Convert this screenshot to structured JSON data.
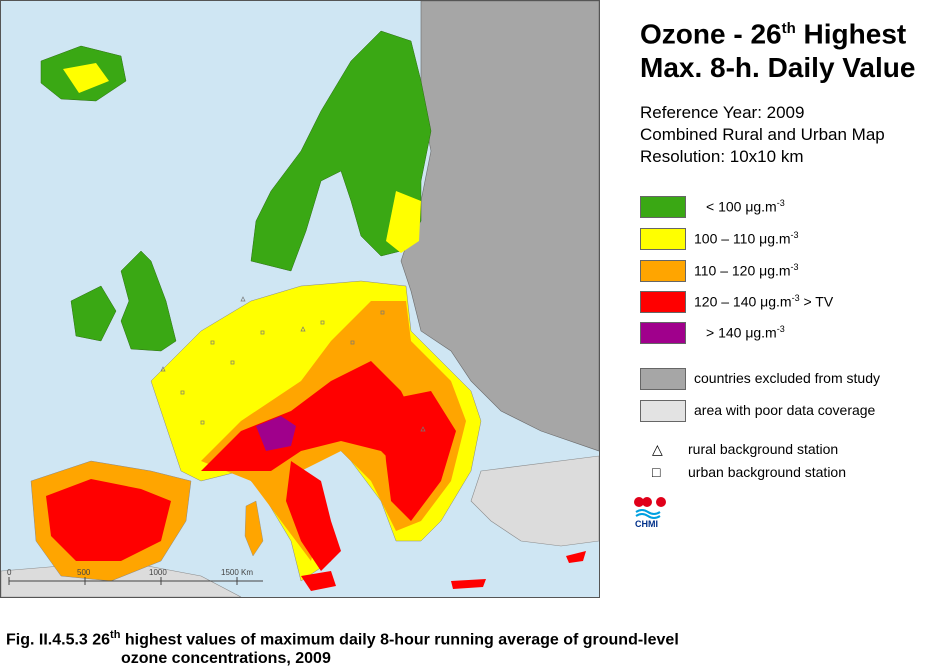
{
  "title": {
    "line1_prefix": "Ozone - 26",
    "line1_sup": "th",
    "line1_suffix": " Highest",
    "line2": "Max. 8-h. Daily Value"
  },
  "info": {
    "reference_year": "Reference Year: 2009",
    "map_type": "Combined Rural and Urban Map",
    "resolution": "Resolution: 10x10 km"
  },
  "legend": [
    {
      "text": "<  100  μg.m",
      "sup": "-3",
      "suffix": "",
      "color": "#3aa814"
    },
    {
      "text": "100 – 110  μg.m",
      "sup": "-3",
      "suffix": "",
      "color": "#ffff00"
    },
    {
      "text": "110 – 120  μg.m",
      "sup": "-3",
      "suffix": "",
      "color": "#ffa500"
    },
    {
      "text": "120 – 140  μg.m",
      "sup": "-3",
      "suffix": "  > TV",
      "color": "#ff0000"
    },
    {
      "text": ">  140  μg.m",
      "sup": "-3",
      "suffix": "",
      "color": "#a0008c"
    }
  ],
  "legend_extra": [
    {
      "text": "countries excluded from study",
      "color": "#a6a6a6"
    },
    {
      "text": "area with poor data coverage",
      "color": "#e3e3e3"
    }
  ],
  "stations": {
    "rural": "rural background station",
    "urban": "urban background station"
  },
  "logo": {
    "text": "CHMI",
    "colors": [
      "#e0001a",
      "#00a0e0"
    ]
  },
  "scale_bar": {
    "ticks": [
      "0",
      "500",
      "1000",
      "1500 Km"
    ]
  },
  "caption": {
    "prefix": "Fig. II.4.5.3  26",
    "sup": "th",
    "line1_rest": " highest values of maximum daily 8-hour running average of ground-level",
    "line2": "ozone concentrations, 2009"
  }
}
